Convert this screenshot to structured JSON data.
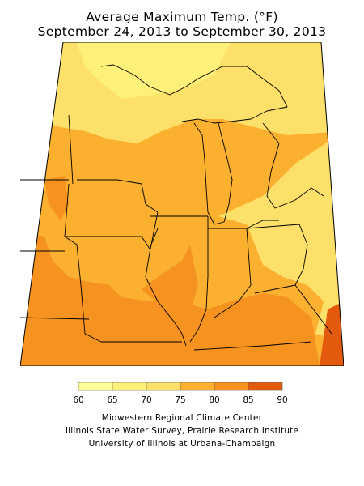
{
  "title_line1": "Average Maximum Temp. (°F)",
  "title_line2": "September 24, 2013 to September 30, 2013",
  "legend": {
    "bins": [
      {
        "from": 60,
        "to": 65,
        "color": "#ffff99"
      },
      {
        "from": 65,
        "to": 70,
        "color": "#fef17a"
      },
      {
        "from": 70,
        "to": 75,
        "color": "#fde06a"
      },
      {
        "from": 75,
        "to": 80,
        "color": "#fbb030"
      },
      {
        "from": 80,
        "to": 85,
        "color": "#f59220"
      },
      {
        "from": 85,
        "to": 90,
        "color": "#e35a0e"
      }
    ],
    "tick_labels": [
      "60",
      "65",
      "70",
      "75",
      "80",
      "85",
      "90"
    ]
  },
  "credits": {
    "line1": "Midwestern Regional Climate Center",
    "line2": "Illinois State Water Survey, Prairie Research Institute",
    "line3": "University of Illinois at Urbana-Champaign"
  }
}
